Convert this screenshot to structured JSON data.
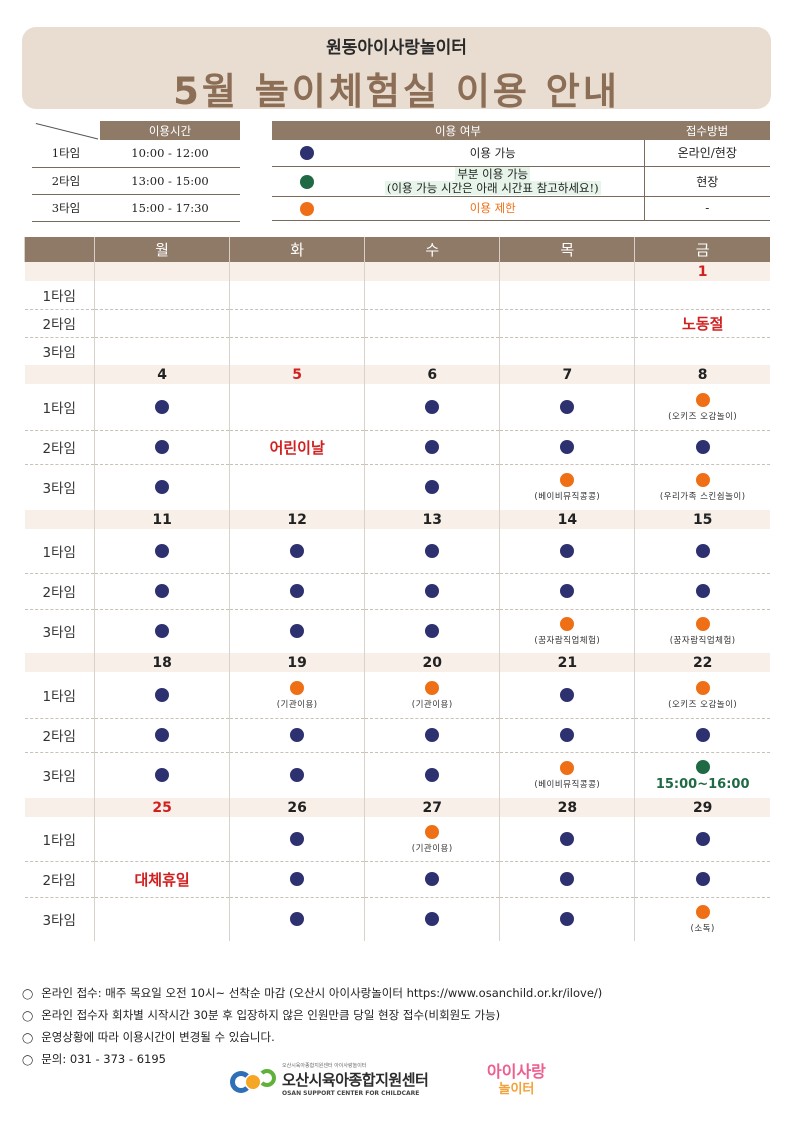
{
  "header": {
    "subtitle": "원동아이사랑놀이터",
    "title": "5월 놀이체험실 이용 안내"
  },
  "times": {
    "header": "이용시간",
    "rows": [
      {
        "label": "1타임",
        "time": "10:00 - 12:00"
      },
      {
        "label": "2타임",
        "time": "13:00 - 15:00"
      },
      {
        "label": "3타임",
        "time": "15:00 - 17:30"
      }
    ]
  },
  "legend": {
    "header_usage": "이용 여부",
    "header_method": "접수방법",
    "rows": [
      {
        "dot": "blue",
        "text": "이용 가능",
        "method": "온라인/현장"
      },
      {
        "dot": "green",
        "text": "부분 이용 가능",
        "text2": "(이용 가능 시간은 아래 시간표 참고하세요!)",
        "method": "현장"
      },
      {
        "dot": "orange",
        "text": "이용 제한",
        "method": "-"
      }
    ]
  },
  "calendar": {
    "days": [
      "월",
      "화",
      "수",
      "목",
      "금"
    ],
    "slot_labels": [
      "1타임",
      "2타임",
      "3타임"
    ],
    "weeks": [
      {
        "dates": [
          "",
          "",
          "",
          "",
          "1"
        ],
        "slots": [
          [
            {},
            {},
            {},
            {},
            {}
          ],
          [
            {},
            {},
            {},
            {},
            {
              "holiday": "노동절"
            }
          ],
          [
            {},
            {},
            {},
            {},
            {}
          ]
        ]
      },
      {
        "dates": [
          "4",
          "5",
          "6",
          "7",
          "8"
        ],
        "slots": [
          [
            {
              "dot": "blue"
            },
            {},
            {
              "dot": "blue"
            },
            {
              "dot": "blue"
            },
            {
              "dot": "orange",
              "note": "(오키즈 오감놀이)"
            }
          ],
          [
            {
              "dot": "blue"
            },
            {
              "holiday": "어린이날"
            },
            {
              "dot": "blue"
            },
            {
              "dot": "blue"
            },
            {
              "dot": "blue"
            }
          ],
          [
            {
              "dot": "blue"
            },
            {},
            {
              "dot": "blue"
            },
            {
              "dot": "orange",
              "note": "(베이비뮤직콩콩)"
            },
            {
              "dot": "orange",
              "note": "(우리가족 스킨쉽놀이)"
            }
          ]
        ]
      },
      {
        "dates": [
          "11",
          "12",
          "13",
          "14",
          "15"
        ],
        "slots": [
          [
            {
              "dot": "blue"
            },
            {
              "dot": "blue"
            },
            {
              "dot": "blue"
            },
            {
              "dot": "blue"
            },
            {
              "dot": "blue"
            }
          ],
          [
            {
              "dot": "blue"
            },
            {
              "dot": "blue"
            },
            {
              "dot": "blue"
            },
            {
              "dot": "blue"
            },
            {
              "dot": "blue"
            }
          ],
          [
            {
              "dot": "blue"
            },
            {
              "dot": "blue"
            },
            {
              "dot": "blue"
            },
            {
              "dot": "orange",
              "note": "(꿈자람직업체험)"
            },
            {
              "dot": "orange",
              "note": "(꿈자람직업체험)"
            }
          ]
        ]
      },
      {
        "dates": [
          "18",
          "19",
          "20",
          "21",
          "22"
        ],
        "slots": [
          [
            {
              "dot": "blue"
            },
            {
              "dot": "orange",
              "note": "(기관이용)"
            },
            {
              "dot": "orange",
              "note": "(기관이용)"
            },
            {
              "dot": "blue"
            },
            {
              "dot": "orange",
              "note": "(오키즈 오감놀이)"
            }
          ],
          [
            {
              "dot": "blue"
            },
            {
              "dot": "blue"
            },
            {
              "dot": "blue"
            },
            {
              "dot": "blue"
            },
            {
              "dot": "blue"
            }
          ],
          [
            {
              "dot": "blue"
            },
            {
              "dot": "blue"
            },
            {
              "dot": "blue"
            },
            {
              "dot": "orange",
              "note": "(베이비뮤직콩콩)"
            },
            {
              "dot": "green",
              "time": "15:00~16:00"
            }
          ]
        ]
      },
      {
        "dates": [
          "25",
          "26",
          "27",
          "28",
          "29"
        ],
        "slots": [
          [
            {},
            {
              "dot": "blue"
            },
            {
              "dot": "orange",
              "note": "(기관이용)"
            },
            {
              "dot": "blue"
            },
            {
              "dot": "blue"
            }
          ],
          [
            {
              "holiday": "대체휴일"
            },
            {
              "dot": "blue"
            },
            {
              "dot": "blue"
            },
            {
              "dot": "blue"
            },
            {
              "dot": "blue"
            }
          ],
          [
            {},
            {
              "dot": "blue"
            },
            {
              "dot": "blue"
            },
            {
              "dot": "blue"
            },
            {
              "dot": "orange",
              "note": "(소독)"
            }
          ]
        ]
      }
    ]
  },
  "red_dates": [
    "1",
    "5",
    "25"
  ],
  "notes": [
    "온라인 접수: 매주 목요일 오전 10시~ 선착순 마감 (오산시 아이사랑놀이터 https://www.osanchild.or.kr/ilove/)",
    "온라인 접수자 회차별 시작시간 30분 후 입장하지 않은 인원만큼 당일 현장 접수(비회원도 가능)",
    "운영상황에 따라 이용시간이 변경될 수 있습니다.",
    "문의: 031 - 373 - 6195"
  ],
  "footer": {
    "org_small": "오산시육아종합지원센터 아이사랑놀이터",
    "org_name": "오산시육아종합지원센터",
    "org_en": "OSAN SUPPORT CENTER FOR CHILDCARE",
    "logo2_line1": "아이사랑",
    "logo2_line2": "놀이터"
  },
  "colors": {
    "blue": "#2d3170",
    "green": "#1f6a45",
    "orange": "#ee6f16",
    "header_bg": "#8f7a68",
    "title": "#8b6e55",
    "holiday": "#d22020"
  }
}
